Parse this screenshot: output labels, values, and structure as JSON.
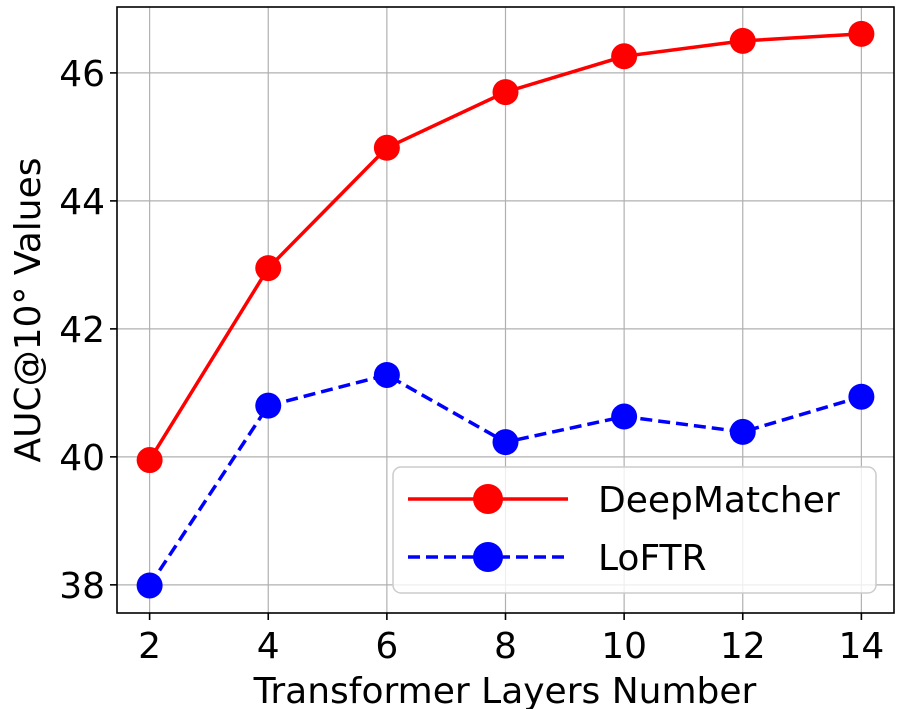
{
  "chart_data": {
    "type": "line",
    "title": "",
    "xlabel": "Transformer Layers Number",
    "ylabel": "AUC@10° Values",
    "x": [
      2,
      4,
      6,
      8,
      10,
      12,
      14
    ],
    "xticks": [
      "2",
      "4",
      "6",
      "8",
      "10",
      "12",
      "14"
    ],
    "yticks": [
      "38",
      "40",
      "42",
      "44",
      "46"
    ],
    "xlim": [
      1.45,
      14.55
    ],
    "ylim": [
      37.56,
      47.03
    ],
    "grid": true,
    "legend_position": "bottom-right",
    "series": [
      {
        "name": "DeepMatcher",
        "color": "#ff0000",
        "line_style": "solid",
        "marker": "circle",
        "values": [
          39.95,
          42.95,
          44.83,
          45.7,
          46.26,
          46.5,
          46.61
        ]
      },
      {
        "name": "LoFTR",
        "color": "#0000ff",
        "line_style": "dashed",
        "marker": "circle",
        "values": [
          37.99,
          40.8,
          41.28,
          40.23,
          40.63,
          40.39,
          40.94
        ]
      }
    ]
  }
}
